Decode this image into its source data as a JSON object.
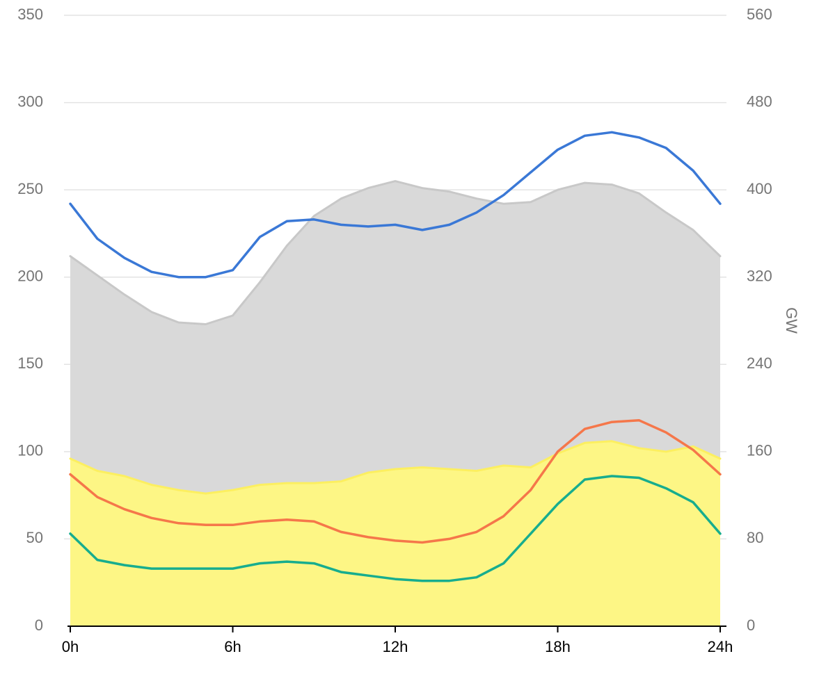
{
  "chart_data": {
    "type": "area",
    "title": "",
    "xlabel": "",
    "ylabel_left": "",
    "ylabel_right": "GW",
    "x": [
      0,
      1,
      2,
      3,
      4,
      5,
      6,
      7,
      8,
      9,
      10,
      11,
      12,
      13,
      14,
      15,
      16,
      17,
      18,
      19,
      20,
      21,
      22,
      23,
      24
    ],
    "xticks": [
      0,
      6,
      12,
      18,
      24
    ],
    "xtick_labels": [
      "0h",
      "6h",
      "12h",
      "18h",
      "24h"
    ],
    "xlim": [
      0,
      24
    ],
    "ylim_left": [
      0,
      350
    ],
    "yticks_left": [
      0,
      50,
      100,
      150,
      200,
      250,
      300,
      350
    ],
    "ylim_right": [
      0,
      560
    ],
    "yticks_right": [
      0,
      80,
      160,
      240,
      320,
      400,
      480,
      560
    ],
    "grid": true,
    "series": [
      {
        "kind": "area",
        "color": "#d9d9d9",
        "edge_color": "#c8c8c8",
        "values": [
          212,
          201,
          190,
          180,
          174,
          173,
          178,
          197,
          218,
          235,
          245,
          251,
          255,
          251,
          249,
          245,
          242,
          243,
          250,
          254,
          253,
          248,
          237,
          227,
          212
        ]
      },
      {
        "kind": "area",
        "color": "#fdf685",
        "edge_color": "#fcef60",
        "values": [
          96,
          89,
          86,
          81,
          78,
          76,
          78,
          81,
          82,
          82,
          83,
          88,
          90,
          91,
          90,
          89,
          92,
          91,
          99,
          105,
          106,
          102,
          100,
          103,
          96
        ]
      },
      {
        "kind": "line",
        "color": "#3a78d6",
        "values": [
          242,
          222,
          211,
          203,
          200,
          200,
          204,
          223,
          232,
          233,
          230,
          229,
          230,
          227,
          230,
          237,
          247,
          260,
          273,
          281,
          283,
          280,
          274,
          261,
          242
        ]
      },
      {
        "kind": "line",
        "color": "#f5774a",
        "values": [
          87,
          74,
          67,
          62,
          59,
          58,
          58,
          60,
          61,
          60,
          54,
          51,
          49,
          48,
          50,
          54,
          63,
          78,
          100,
          113,
          117,
          118,
          111,
          101,
          87
        ]
      },
      {
        "kind": "line",
        "color": "#17ad8e",
        "values": [
          53,
          38,
          35,
          33,
          33,
          33,
          33,
          36,
          37,
          36,
          31,
          29,
          27,
          26,
          26,
          28,
          36,
          53,
          70,
          84,
          86,
          85,
          79,
          71,
          53
        ]
      }
    ]
  }
}
